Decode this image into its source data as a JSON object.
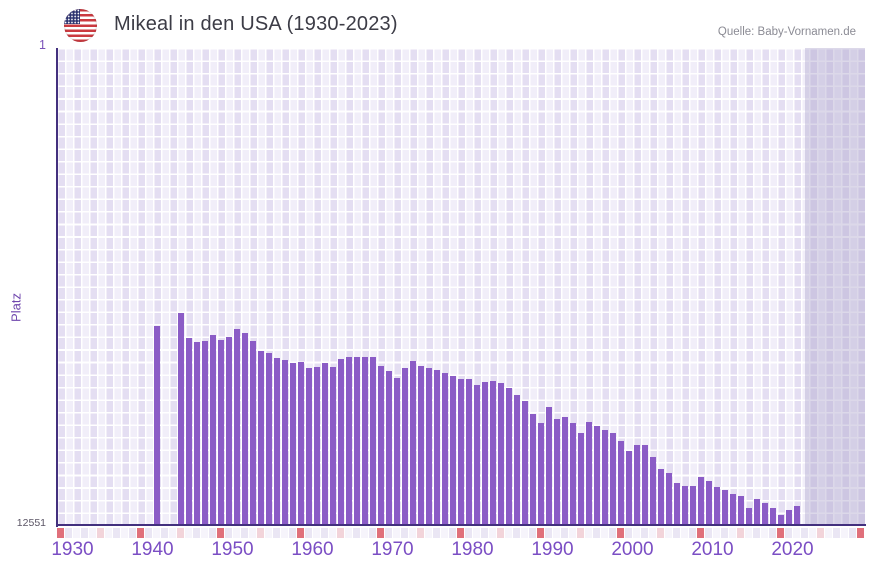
{
  "header": {
    "title": "Mikeal in den USA (1930-2023)",
    "source": "Quelle: Baby-Vornamen.de",
    "flag_icon": "us-flag-icon"
  },
  "chart_data": {
    "type": "bar",
    "title": "Mikeal in den USA (1930-2023)",
    "xlabel": "",
    "ylabel": "Platz",
    "grid": true,
    "legend": false,
    "y_axis": {
      "top_label": "1",
      "bottom_label": "12551",
      "min": 1,
      "max": 12551,
      "inverted_rank_scale": true
    },
    "x_axis": {
      "tick_labels": [
        "1930",
        "1940",
        "1950",
        "1960",
        "1970",
        "1980",
        "1990",
        "2000",
        "2010",
        "2020"
      ],
      "first_year_cell": 1929,
      "last_year_cell": 2029
    },
    "no_data_band": {
      "from_year": 2022,
      "note": "shaded region after last bar"
    },
    "series": [
      {
        "name": "Platz (Rang) von Mikeal",
        "points": [
          [
            1941,
            7310
          ],
          [
            1944,
            6970
          ],
          [
            1945,
            7630
          ],
          [
            1946,
            7740
          ],
          [
            1947,
            7710
          ],
          [
            1948,
            7550
          ],
          [
            1949,
            7680
          ],
          [
            1950,
            7600
          ],
          [
            1951,
            7390
          ],
          [
            1952,
            7500
          ],
          [
            1953,
            7710
          ],
          [
            1954,
            7970
          ],
          [
            1955,
            8020
          ],
          [
            1956,
            8160
          ],
          [
            1957,
            8210
          ],
          [
            1958,
            8290
          ],
          [
            1959,
            8260
          ],
          [
            1960,
            8420
          ],
          [
            1961,
            8390
          ],
          [
            1962,
            8290
          ],
          [
            1963,
            8390
          ],
          [
            1964,
            8180
          ],
          [
            1965,
            8130
          ],
          [
            1966,
            8130
          ],
          [
            1967,
            8130
          ],
          [
            1968,
            8130
          ],
          [
            1969,
            8370
          ],
          [
            1970,
            8500
          ],
          [
            1971,
            8680
          ],
          [
            1972,
            8420
          ],
          [
            1973,
            8240
          ],
          [
            1974,
            8370
          ],
          [
            1975,
            8420
          ],
          [
            1976,
            8470
          ],
          [
            1977,
            8550
          ],
          [
            1978,
            8630
          ],
          [
            1979,
            8710
          ],
          [
            1980,
            8710
          ],
          [
            1981,
            8870
          ],
          [
            1982,
            8790
          ],
          [
            1983,
            8760
          ],
          [
            1984,
            8810
          ],
          [
            1985,
            8950
          ],
          [
            1986,
            9130
          ],
          [
            1987,
            9290
          ],
          [
            1988,
            9630
          ],
          [
            1989,
            9870
          ],
          [
            1990,
            9450
          ],
          [
            1991,
            9760
          ],
          [
            1992,
            9710
          ],
          [
            1993,
            9870
          ],
          [
            1994,
            10130
          ],
          [
            1995,
            9840
          ],
          [
            1996,
            9950
          ],
          [
            1997,
            10050
          ],
          [
            1998,
            10130
          ],
          [
            1999,
            10340
          ],
          [
            2000,
            10600
          ],
          [
            2001,
            10450
          ],
          [
            2002,
            10450
          ],
          [
            2003,
            10760
          ],
          [
            2004,
            11080
          ],
          [
            2005,
            11180
          ],
          [
            2006,
            11450
          ],
          [
            2007,
            11520
          ],
          [
            2008,
            11520
          ],
          [
            2009,
            11290
          ],
          [
            2010,
            11390
          ],
          [
            2011,
            11550
          ],
          [
            2012,
            11630
          ],
          [
            2013,
            11730
          ],
          [
            2014,
            11790
          ],
          [
            2015,
            12100
          ],
          [
            2016,
            11870
          ],
          [
            2017,
            11970
          ],
          [
            2018,
            12100
          ],
          [
            2019,
            12290
          ],
          [
            2020,
            12160
          ],
          [
            2021,
            12050
          ]
        ]
      }
    ]
  },
  "colors": {
    "bar": "#8b5cc6",
    "axis": "#43307e",
    "grid_bg": "#f1eefa",
    "grid_col_a": "#e4def2",
    "grid_col_b": "#f1eef9",
    "band": "#b2a9cf",
    "decade_cell": "#e0707b",
    "half_decade_cell": "#f2d4da",
    "strip_cell_a": "#eae6f4",
    "strip_cell_b": "#f6f4fb"
  }
}
